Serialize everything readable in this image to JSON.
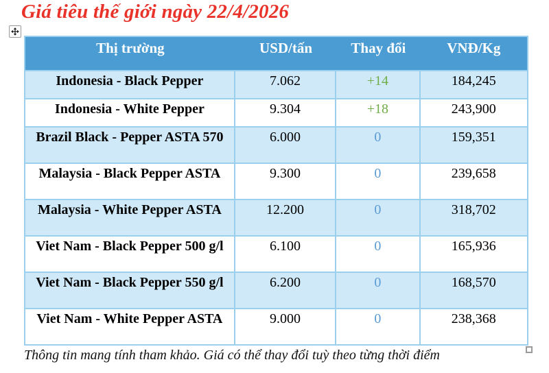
{
  "title": "Giá tiêu thế giới ngày 22/4/2026",
  "table": {
    "headers": [
      "Thị trường",
      "USD/tấn",
      "Thay đổi",
      "VNĐ/Kg"
    ],
    "rows": [
      {
        "market": "Indonesia - Black Pepper",
        "usd": "7.062",
        "change": "+14",
        "change_type": "up",
        "vnd": "184,245",
        "lines": "single"
      },
      {
        "market": "Indonesia - White Pepper",
        "usd": "9.304",
        "change": "+18",
        "change_type": "up",
        "vnd": "243,900",
        "lines": "single"
      },
      {
        "market": "Brazil Black - Pepper ASTA 570",
        "usd": "6.000",
        "change": "0",
        "change_type": "zero",
        "vnd": "159,351",
        "lines": "double"
      },
      {
        "market": "Malaysia - Black Pepper ASTA",
        "usd": "9.300",
        "change": "0",
        "change_type": "zero",
        "vnd": "239,658",
        "lines": "double"
      },
      {
        "market": "Malaysia - White Pepper ASTA",
        "usd": "12.200",
        "change": "0",
        "change_type": "zero",
        "vnd": "318,702",
        "lines": "double"
      },
      {
        "market": "Viet Nam - Black Pepper 500 g/l",
        "usd": "6.100",
        "change": "0",
        "change_type": "zero",
        "vnd": "165,936",
        "lines": "double"
      },
      {
        "market": "Viet Nam - Black Pepper 550 g/l",
        "usd": "6.200",
        "change": "0",
        "change_type": "zero",
        "vnd": "168,570",
        "lines": "double"
      },
      {
        "market": "Viet Nam - White Pepper ASTA",
        "usd": "9.000",
        "change": "0",
        "change_type": "zero",
        "vnd": "238,368",
        "lines": "double"
      }
    ]
  },
  "footer": "Thông tin mang tính tham khảo. Giá có thể thay đổi tuỳ theo từng thời điểm",
  "icons": {
    "move": "table-move-icon",
    "resize": "table-resize-handle"
  },
  "colors": {
    "title_red": "#e9322a",
    "header_bg": "#4b9cd3",
    "header_text": "#ffffff",
    "row_alt_bg": "#cfe9f8",
    "row_bg": "#ffffff",
    "border": "#9bcfee",
    "change_up": "#70ad47",
    "change_zero": "#5b9bd5"
  }
}
